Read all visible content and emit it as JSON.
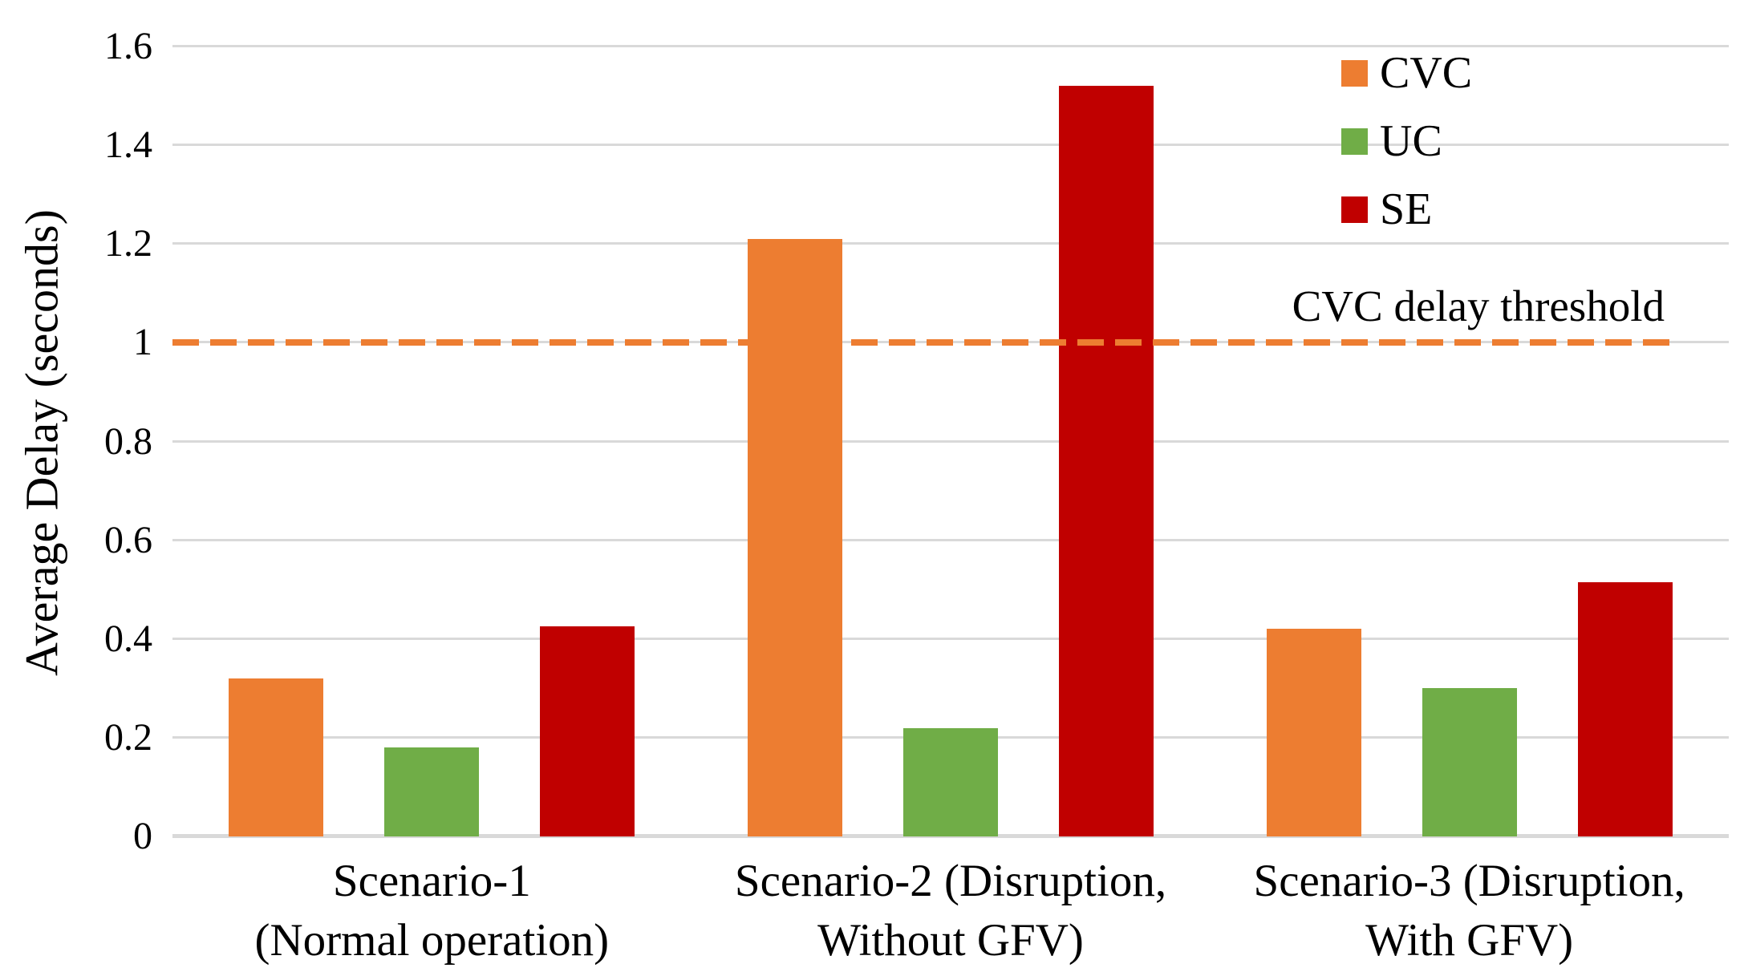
{
  "chart_data": {
    "type": "bar",
    "title": "",
    "xlabel": "",
    "ylabel": "Average Delay (seconds)",
    "ylim": [
      0,
      1.6
    ],
    "grid": true,
    "gridline_color": "#D9D9D9",
    "legend_position": "top-right",
    "yticks": [
      {
        "label": "0",
        "value": 0
      },
      {
        "label": "0.2",
        "value": 0.2
      },
      {
        "label": "0.4",
        "value": 0.4
      },
      {
        "label": "0.6",
        "value": 0.6
      },
      {
        "label": "0.8",
        "value": 0.8
      },
      {
        "label": "1",
        "value": 1
      },
      {
        "label": "1.2",
        "value": 1.2
      },
      {
        "label": "1.4",
        "value": 1.4
      },
      {
        "label": "1.6",
        "value": 1.6
      }
    ],
    "categories": [
      {
        "slug": "scenario-1",
        "lines": [
          "Scenario-1",
          "(Normal operation)"
        ]
      },
      {
        "slug": "scenario-2",
        "lines": [
          "Scenario-2 (Disruption,",
          "Without GFV)"
        ]
      },
      {
        "slug": "scenario-3",
        "lines": [
          "Scenario-3 (Disruption,",
          "With GFV)"
        ]
      }
    ],
    "series": [
      {
        "name": "CVC",
        "color": "#ED7D31",
        "values": [
          0.32,
          1.21,
          0.42
        ]
      },
      {
        "name": "UC",
        "color": "#70AD47",
        "values": [
          0.18,
          0.22,
          0.3
        ]
      },
      {
        "name": "SE",
        "color": "#C00000",
        "values": [
          0.425,
          1.52,
          0.515
        ]
      }
    ],
    "threshold": {
      "label": "CVC delay threshold",
      "value": 1.0,
      "color": "#ED7D31",
      "style": "dashed"
    }
  }
}
